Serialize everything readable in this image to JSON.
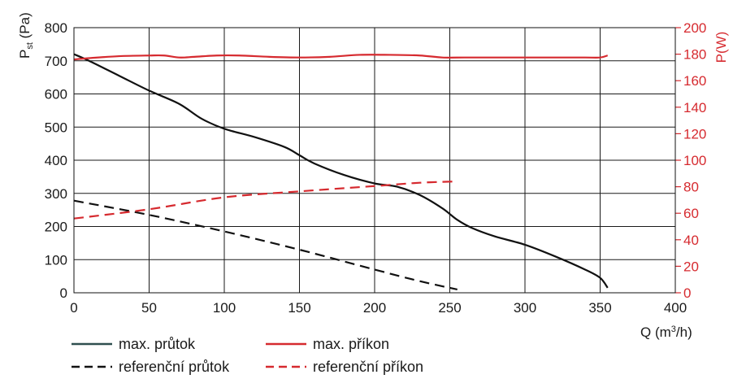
{
  "chart_data": {
    "type": "line",
    "title": "",
    "xlabel_prefix": "Q (m",
    "xlabel_sup": "3",
    "xlabel_suffix": "/h)",
    "ylabel_left_main": "P",
    "ylabel_left_sub": "st",
    "ylabel_left_suffix": " (Pa)",
    "ylabel_right": "P(W)",
    "xlim": [
      0,
      400
    ],
    "ylim_left": [
      0,
      800
    ],
    "ylim_right": [
      0,
      200
    ],
    "x_ticks": [
      "0",
      "50",
      "100",
      "150",
      "200",
      "250",
      "300",
      "350",
      "400"
    ],
    "y_left_ticks": [
      "0",
      "100",
      "200",
      "300",
      "400",
      "500",
      "600",
      "700",
      "800"
    ],
    "y_right_ticks": [
      "0",
      "20",
      "40",
      "60",
      "80",
      "100",
      "120",
      "140",
      "160",
      "180",
      "200"
    ],
    "grid": true,
    "legend_position": "bottom",
    "colors": {
      "black": "#111111",
      "red": "#d62a2f",
      "legend_dark": "#2f4f4f"
    },
    "series": [
      {
        "name": "max. průtok",
        "axis": "left",
        "style": "solid",
        "color": "#111111",
        "x": [
          0,
          10,
          30,
          50,
          70,
          85,
          100,
          120,
          140,
          150,
          160,
          180,
          200,
          215,
          230,
          245,
          255,
          265,
          280,
          300,
          320,
          340,
          350,
          355
        ],
        "y": [
          720,
          700,
          655,
          610,
          570,
          525,
          495,
          470,
          440,
          415,
          390,
          355,
          330,
          320,
          295,
          255,
          220,
          195,
          170,
          145,
          110,
          70,
          45,
          15
        ]
      },
      {
        "name": "max. příkon",
        "axis": "right",
        "style": "solid",
        "color": "#d62a2f",
        "x": [
          0,
          10,
          30,
          50,
          60,
          70,
          80,
          95,
          110,
          130,
          150,
          170,
          190,
          210,
          230,
          245,
          260,
          280,
          300,
          320,
          340,
          350,
          355
        ],
        "y": [
          176,
          177,
          178.5,
          179,
          179,
          177.5,
          178,
          179,
          179,
          178,
          177.5,
          178,
          179.5,
          179.5,
          179,
          177.5,
          177.5,
          177.5,
          177.5,
          177.5,
          177.5,
          177.5,
          179
        ]
      },
      {
        "name": "referenční průtok",
        "axis": "left",
        "style": "dashed",
        "color": "#111111",
        "x": [
          0,
          50,
          100,
          150,
          200,
          230,
          255
        ],
        "y": [
          278,
          235,
          185,
          130,
          70,
          35,
          10
        ]
      },
      {
        "name": "referenční příkon",
        "axis": "right",
        "style": "dashed",
        "color": "#d62a2f",
        "x": [
          0,
          50,
          100,
          150,
          200,
          230,
          255
        ],
        "y": [
          56,
          63,
          72,
          76.5,
          80.5,
          83,
          84
        ]
      }
    ]
  },
  "legend": [
    {
      "label": "max. průtok",
      "color": "#2f4f4f",
      "style": "solid"
    },
    {
      "label": "max. příkon",
      "color": "#d62a2f",
      "style": "solid"
    },
    {
      "label": "referenční průtok",
      "color": "#111111",
      "style": "dashed"
    },
    {
      "label": "referenční příkon",
      "color": "#d62a2f",
      "style": "dashed"
    }
  ]
}
